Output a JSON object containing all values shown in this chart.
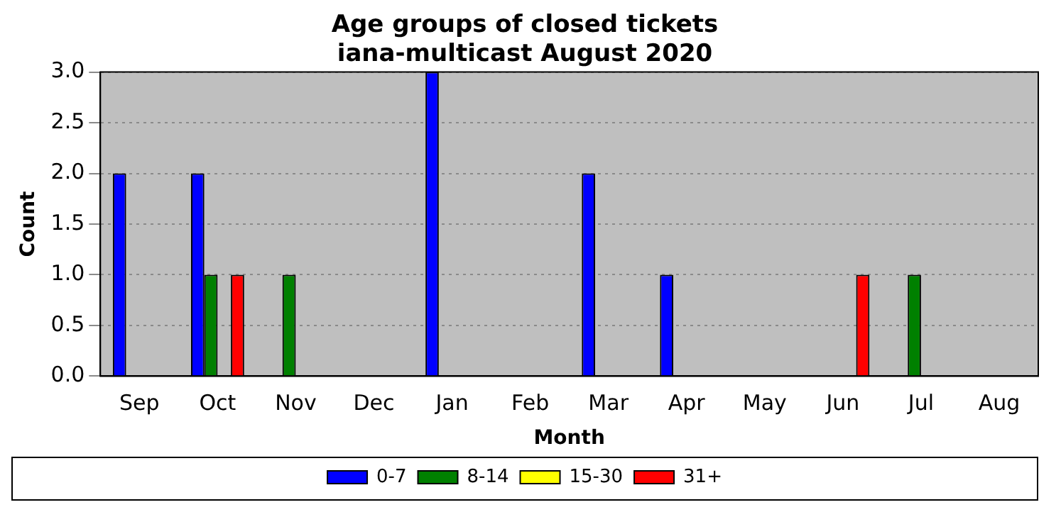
{
  "chart_data": {
    "type": "bar",
    "title": "Age groups of closed tickets\niana-multicast August 2020",
    "xlabel": "Month",
    "ylabel": "Count",
    "categories": [
      "Sep",
      "Oct",
      "Nov",
      "Dec",
      "Jan",
      "Feb",
      "Mar",
      "Apr",
      "May",
      "Jun",
      "Jul",
      "Aug"
    ],
    "series": [
      {
        "name": "0-7",
        "color": "#0000ff",
        "values": [
          2,
          2,
          0,
          0,
          3,
          0,
          2,
          1,
          0,
          0,
          0,
          0
        ]
      },
      {
        "name": "8-14",
        "color": "#008000",
        "values": [
          0,
          1,
          1,
          0,
          0,
          0,
          0,
          0,
          0,
          0,
          1,
          0
        ]
      },
      {
        "name": "15-30",
        "color": "#ffff00",
        "values": [
          0,
          0,
          0,
          0,
          0,
          0,
          0,
          0,
          0,
          0,
          0,
          0
        ]
      },
      {
        "name": "31+",
        "color": "#ff0000",
        "values": [
          0,
          1,
          0,
          0,
          0,
          0,
          0,
          0,
          0,
          1,
          0,
          0
        ]
      }
    ],
    "ylim": [
      0,
      3
    ],
    "yticks": [
      {
        "value": 0,
        "label": "0.0"
      },
      {
        "value": 0.5,
        "label": "0.5"
      },
      {
        "value": 1,
        "label": "1.0"
      },
      {
        "value": 1.5,
        "label": "1.5"
      },
      {
        "value": 2,
        "label": "2.0"
      },
      {
        "value": 2.5,
        "label": "2.5"
      },
      {
        "value": 3,
        "label": "3.0"
      }
    ],
    "grid": "y",
    "legend": "bottom"
  }
}
